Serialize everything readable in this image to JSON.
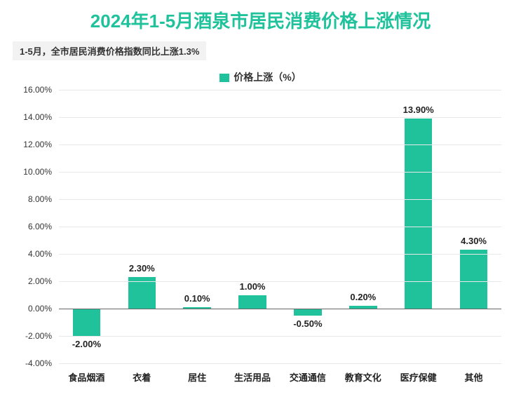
{
  "chart": {
    "type": "bar",
    "title": "2024年1-5月酒泉市居民消费价格上涨情况",
    "title_color": "#1fc29b",
    "title_fontsize": 26,
    "subtitle": "1-5月，全市居民消费价格指数同比上涨1.3%",
    "subtitle_bg": "#f2f2f2",
    "subtitle_color": "#333333",
    "subtitle_fontsize": 13,
    "legend_label": "价格上涨（%）",
    "legend_marker_color": "#1fc29b",
    "legend_fontsize": 14,
    "legend_text_color": "#333333",
    "background_color": "#ffffff",
    "y": {
      "min": -4.0,
      "max": 16.0,
      "step": 2.0,
      "format_suffix": ".00%",
      "label_fontsize": 12,
      "label_color": "#333333"
    },
    "grid_color": "#e8e8e8",
    "zero_line_color": "#666666",
    "bar_color": "#1fc29b",
    "bar_width_ratio": 0.5,
    "data_label_fontsize": 13,
    "data_label_color": "#222222",
    "x_label_fontsize": 13,
    "x_label_color": "#222222",
    "categories": [
      "食品烟酒",
      "衣着",
      "居住",
      "生活用品",
      "交通通信",
      "教育文化",
      "医疗保健",
      "其他"
    ],
    "values": [
      -2.0,
      2.3,
      0.1,
      1.0,
      -0.5,
      0.2,
      13.9,
      4.3
    ],
    "value_labels": [
      "-2.00%",
      "2.30%",
      "0.10%",
      "1.00%",
      "-0.50%",
      "0.20%",
      "13.90%",
      "4.30%"
    ]
  }
}
